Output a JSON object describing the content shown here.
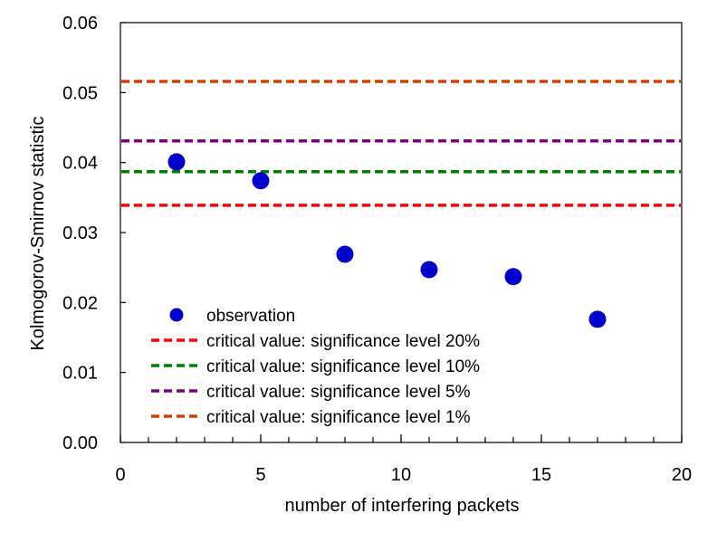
{
  "chart_data": {
    "type": "scatter",
    "xlabel": "number of interfering packets",
    "ylabel": "Kolmogorov-Smirnov statistic",
    "xlim": [
      0,
      20
    ],
    "ylim": [
      0,
      0.06
    ],
    "xticks": [
      0,
      5,
      10,
      15,
      20
    ],
    "xtick_labels": [
      "0",
      "5",
      "10",
      "15",
      "20"
    ],
    "x_minor_step": 1,
    "yticks": [
      0,
      0.01,
      0.02,
      0.03,
      0.04,
      0.05,
      0.06
    ],
    "ytick_labels": [
      "0.00",
      "0.01",
      "0.02",
      "0.03",
      "0.04",
      "0.05",
      "0.06"
    ],
    "grid": false,
    "legend_position": "bottom-left",
    "series": [
      {
        "name": "observation",
        "kind": "points",
        "color": "#0000CC",
        "x": [
          2,
          5,
          8,
          11,
          14,
          17
        ],
        "y": [
          0.0401,
          0.0374,
          0.0269,
          0.0247,
          0.0237,
          0.0176
        ]
      },
      {
        "name": "critical value: significance level 20%",
        "kind": "hline",
        "color": "#FF0000",
        "y": 0.0339
      },
      {
        "name": "critical value: significance level 10%",
        "kind": "hline",
        "color": "#008000",
        "y": 0.0387
      },
      {
        "name": "critical value: significance level 5%",
        "kind": "hline",
        "color": "#7F007F",
        "y": 0.0431
      },
      {
        "name": "critical value: significance level 1%",
        "kind": "hline",
        "color": "#CC4400",
        "y": 0.0516
      }
    ]
  }
}
